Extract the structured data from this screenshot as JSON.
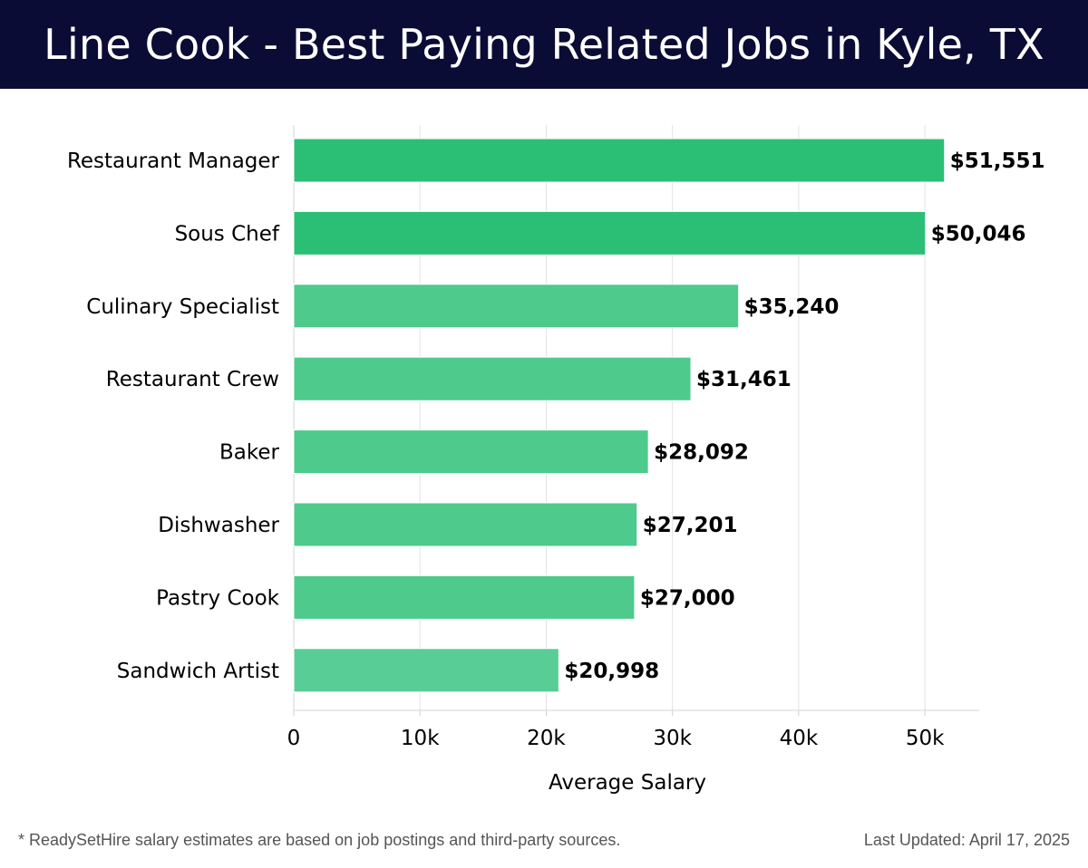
{
  "header": {
    "title": "Line Cook - Best Paying Related Jobs in Kyle, TX"
  },
  "chart_data": {
    "type": "bar",
    "orientation": "horizontal",
    "categories": [
      "Restaurant Manager",
      "Sous Chef",
      "Culinary Specialist",
      "Restaurant Crew",
      "Baker",
      "Dishwasher",
      "Pastry Cook",
      "Sandwich Artist"
    ],
    "values": [
      51551,
      50046,
      35240,
      31461,
      28092,
      27201,
      27000,
      20998
    ],
    "value_labels": [
      "$51,551",
      "$50,046",
      "$35,240",
      "$31,461",
      "$28,092",
      "$27,201",
      "$27,000",
      "$20,998"
    ],
    "xticks": [
      0,
      10000,
      20000,
      30000,
      40000,
      50000
    ],
    "xtick_labels": [
      "0",
      "10k",
      "20k",
      "30k",
      "40k",
      "50k"
    ],
    "xlim": [
      0,
      54300
    ],
    "xlabel": "Average Salary",
    "ylabel": "",
    "grid": "vertical",
    "colors": {
      "top": "#2bbf75",
      "rest": "#4dca8c",
      "last": "#58cd95",
      "grid": "#e2e2e2",
      "label": "#000000"
    }
  },
  "footer": {
    "note": "* ReadySetHire salary estimates are based on job postings and third-party sources.",
    "updated": "Last Updated: April 17, 2025"
  }
}
